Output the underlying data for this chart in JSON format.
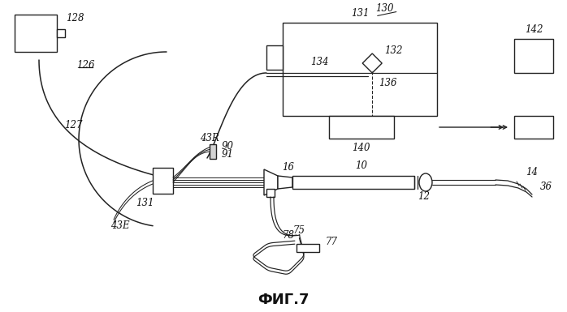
{
  "bg_color": "#ffffff",
  "line_color": "#222222",
  "label_color": "#111111",
  "title": "ФИГ.7",
  "title_fontsize": 13,
  "label_fontsize": 8.5,
  "fig_width": 6.98,
  "fig_height": 3.85
}
